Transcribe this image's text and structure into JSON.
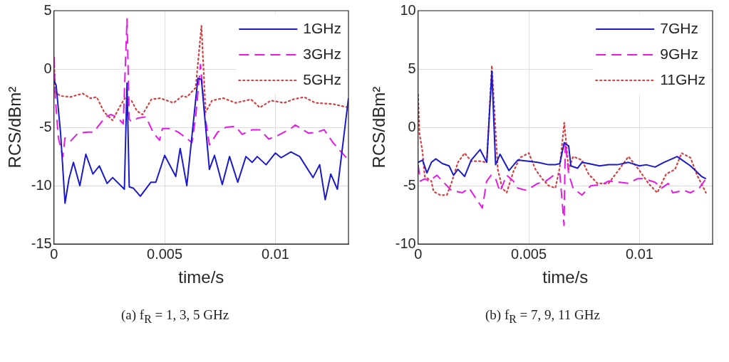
{
  "chart_data": [
    {
      "type": "line",
      "xlabel": "time/s",
      "ylabel": "RCS/dBm²",
      "xlim": [
        0,
        0.0133
      ],
      "xticks": [
        0,
        0.005,
        0.01
      ],
      "ylim": [
        -15,
        5
      ],
      "yticks": [
        -15,
        -10,
        -5,
        0,
        5
      ],
      "grid": true,
      "legend": "top right",
      "marker": "none",
      "annotations": [
        "(a) f$_{R}$ = 1, 3, 5 GHz"
      ],
      "series": [
        {
          "name": "1GHz",
          "color": "#1a1acc",
          "line_style": "solid",
          "x": [
            0,
            0.0001,
            0.0003,
            0.0005,
            0.00068,
            0.00088,
            0.00117,
            0.00144,
            0.00176,
            0.00205,
            0.0024,
            0.00265,
            0.00318,
            0.0033,
            0.0034,
            0.00358,
            0.0039,
            0.00438,
            0.0046,
            0.005,
            0.0055,
            0.0057,
            0.006,
            0.0065,
            0.00666,
            0.00702,
            0.00725,
            0.0076,
            0.00793,
            0.0083,
            0.00867,
            0.00895,
            0.00918,
            0.00958,
            0.01,
            0.01026,
            0.0107,
            0.0111,
            0.0117,
            0.012,
            0.01225,
            0.0125,
            0.0128,
            0.0133
          ],
          "values": [
            -1.0,
            -1.4,
            -5.5,
            -11.5,
            -9.4,
            -8.0,
            -10.0,
            -7.3,
            -9.0,
            -8.3,
            -9.8,
            -9.3,
            -10.3,
            -1.2,
            -10.1,
            -10.2,
            -10.9,
            -9.7,
            -9.7,
            -7.4,
            -9.2,
            -6.8,
            -10.0,
            -0.8,
            -0.9,
            -8.6,
            -7.4,
            -9.9,
            -7.5,
            -9.7,
            -7.5,
            -8.0,
            -7.5,
            -8.2,
            -7.2,
            -7.6,
            -7.1,
            -7.5,
            -9.3,
            -8.2,
            -11.2,
            -9.0,
            -10.3,
            -2.5
          ]
        },
        {
          "name": "3GHz",
          "color": "#e619e6",
          "line_style": "dashed",
          "x": [
            0,
            6e-05,
            0.0002,
            0.0004,
            0.0005,
            0.00074,
            0.00108,
            0.00153,
            0.0018,
            0.002,
            0.00233,
            0.00256,
            0.00284,
            0.00313,
            0.0033,
            0.0034,
            0.0035,
            0.0038,
            0.00415,
            0.0045,
            0.00477,
            0.0049,
            0.0053,
            0.0056,
            0.0059,
            0.00623,
            0.0064,
            0.00662,
            0.0068,
            0.00702,
            0.0074,
            0.00776,
            0.0082,
            0.0085,
            0.00895,
            0.0093,
            0.0097,
            0.0101,
            0.0107,
            0.0109,
            0.0115,
            0.0119,
            0.0122,
            0.0126,
            0.0133
          ],
          "values": [
            1.0,
            -2.4,
            -5.9,
            -7.5,
            -5.9,
            -6.2,
            -5.5,
            -5.4,
            -5.4,
            -4.9,
            -4.1,
            -3.9,
            -4.1,
            -4.7,
            4.3,
            -4.3,
            -4.5,
            -4.2,
            -4.1,
            -5.5,
            -6.1,
            -5.1,
            -5.1,
            -5.4,
            -5.8,
            -6.3,
            -4.1,
            0.4,
            -3.7,
            -6.5,
            -5.4,
            -5.0,
            -4.9,
            -5.6,
            -5.2,
            -5.2,
            -6.0,
            -5.7,
            -5.1,
            -4.8,
            -5.5,
            -5.4,
            -5.2,
            -6.3,
            -7.8
          ]
        },
        {
          "name": "5GHz",
          "color": "#d04040",
          "line_style": "dotted",
          "x": [
            0,
            6e-05,
            0.0003,
            0.00074,
            0.0013,
            0.00165,
            0.00193,
            0.00227,
            0.00265,
            0.00295,
            0.0032,
            0.0035,
            0.00375,
            0.004,
            0.0044,
            0.0048,
            0.0054,
            0.0058,
            0.006,
            0.0064,
            0.00666,
            0.00685,
            0.00714,
            0.00765,
            0.0082,
            0.0089,
            0.0093,
            0.0098,
            0.0104,
            0.0108,
            0.0113,
            0.0118,
            0.0126,
            0.0133
          ],
          "values": [
            1.0,
            -2.0,
            -2.3,
            -2.4,
            -2.1,
            -2.5,
            -2.4,
            -3.7,
            -4.4,
            -3.3,
            -2.5,
            -2.7,
            -3.6,
            -3.9,
            -2.6,
            -2.5,
            -2.9,
            -2.3,
            -2.4,
            -1.6,
            3.7,
            -3.7,
            -2.7,
            -2.5,
            -2.9,
            -2.6,
            -3.3,
            -2.7,
            -2.9,
            -2.6,
            -2.4,
            -2.9,
            -3.0,
            -3.3
          ]
        }
      ]
    },
    {
      "type": "line",
      "xlabel": "time/s",
      "ylabel": "RCS/dBm²",
      "xlim": [
        0,
        0.0133
      ],
      "xticks": [
        0,
        0.005,
        0.01
      ],
      "ylim": [
        -10,
        10
      ],
      "yticks": [
        -10,
        -5,
        0,
        5,
        10
      ],
      "grid": true,
      "legend": "top right",
      "marker": "none",
      "annotations": [
        "(b) f$_{R}$ = 7, 9, 11 GHz"
      ],
      "series": [
        {
          "name": "7GHz",
          "color": "#1a1acc",
          "line_style": "solid",
          "x": [
            0,
            0.0002,
            0.0004,
            0.0006,
            0.0008,
            0.0011,
            0.0014,
            0.0016,
            0.0018,
            0.0021,
            0.0024,
            0.0028,
            0.0031,
            0.00333,
            0.0035,
            0.0037,
            0.0041,
            0.0045,
            0.005,
            0.0054,
            0.0059,
            0.0062,
            0.0064,
            0.0066,
            0.0068,
            0.0069,
            0.0072,
            0.0074,
            0.0077,
            0.0082,
            0.0086,
            0.009,
            0.0095,
            0.01,
            0.0103,
            0.0107,
            0.0111,
            0.0117,
            0.0123,
            0.0128,
            0.013
          ],
          "values": [
            -3.0,
            -2.8,
            -3.9,
            -3.0,
            -2.7,
            -3.1,
            -3.3,
            -4.1,
            -3.6,
            -4.2,
            -2.8,
            -1.9,
            -3.0,
            4.8,
            -3.2,
            -2.3,
            -3.7,
            -2.8,
            -2.9,
            -3.0,
            -3.2,
            -3.2,
            -3.1,
            -1.3,
            -1.6,
            -3.3,
            -3.5,
            -3.0,
            -3.1,
            -3.3,
            -3.2,
            -3.2,
            -3.0,
            -3.3,
            -3.2,
            -3.4,
            -3.0,
            -2.5,
            -3.3,
            -4.2,
            -4.4
          ]
        },
        {
          "name": "9GHz",
          "color": "#e619e6",
          "line_style": "dashed",
          "x": [
            0,
            0.0001,
            0.0003,
            0.0005,
            0.00085,
            0.0012,
            0.0015,
            0.002,
            0.0023,
            0.0029,
            0.0031,
            0.0033,
            0.0035,
            0.0037,
            0.004,
            0.0043,
            0.0045,
            0.0049,
            0.0054,
            0.0057,
            0.0062,
            0.0064,
            0.0065,
            0.00659,
            0.00665,
            0.0068,
            0.007,
            0.0074,
            0.0078,
            0.0083,
            0.0086,
            0.0091,
            0.0095,
            0.0099,
            0.0102,
            0.0107,
            0.011,
            0.0113,
            0.0115,
            0.012,
            0.0123,
            0.0127,
            0.013
          ],
          "values": [
            -3.2,
            -4.6,
            -4.4,
            -4.6,
            -4.1,
            -4.8,
            -5.4,
            -5.6,
            -5.2,
            -6.9,
            -4.6,
            -4.1,
            -4.4,
            -5.5,
            -4.1,
            -4.6,
            -5.2,
            -5.4,
            -4.8,
            -4.7,
            -4.0,
            -4.0,
            -6.2,
            -8.4,
            -1.3,
            -4.0,
            -5.2,
            -5.8,
            -5.0,
            -4.9,
            -4.6,
            -4.7,
            -4.8,
            -4.4,
            -4.4,
            -4.7,
            -5.2,
            -4.8,
            -5.6,
            -5.4,
            -5.6,
            -5.2,
            -4.4
          ]
        },
        {
          "name": "11GHz",
          "color": "#d04040",
          "line_style": "dotted",
          "x": [
            0,
            6e-05,
            0.0002,
            0.0003,
            0.0006,
            0.0007,
            0.001,
            0.0013,
            0.0015,
            0.0018,
            0.0021,
            0.0024,
            0.0028,
            0.0031,
            0.00333,
            0.0036,
            0.0038,
            0.004,
            0.0043,
            0.0046,
            0.005,
            0.0053,
            0.0056,
            0.0059,
            0.0062,
            0.0064,
            0.0066,
            0.0068,
            0.007,
            0.0074,
            0.0077,
            0.0081,
            0.0086,
            0.009,
            0.0095,
            0.01,
            0.0104,
            0.0108,
            0.0112,
            0.0116,
            0.0119,
            0.0123,
            0.0126,
            0.013
          ],
          "values": [
            2.8,
            -0.5,
            -2.1,
            -4.2,
            -4.6,
            -5.5,
            -5.8,
            -5.8,
            -4.8,
            -3.0,
            -2.2,
            -2.9,
            -2.9,
            -3.0,
            5.3,
            -3.6,
            -5.2,
            -5.6,
            -3.8,
            -2.6,
            -2.2,
            -3.6,
            -4.4,
            -5.0,
            -5.2,
            -3.4,
            0.4,
            -3.6,
            -2.5,
            -2.8,
            -4.0,
            -4.8,
            -4.8,
            -3.8,
            -2.5,
            -3.7,
            -4.8,
            -5.6,
            -4.0,
            -3.6,
            -2.2,
            -2.6,
            -4.1,
            -5.6
          ]
        }
      ]
    }
  ]
}
